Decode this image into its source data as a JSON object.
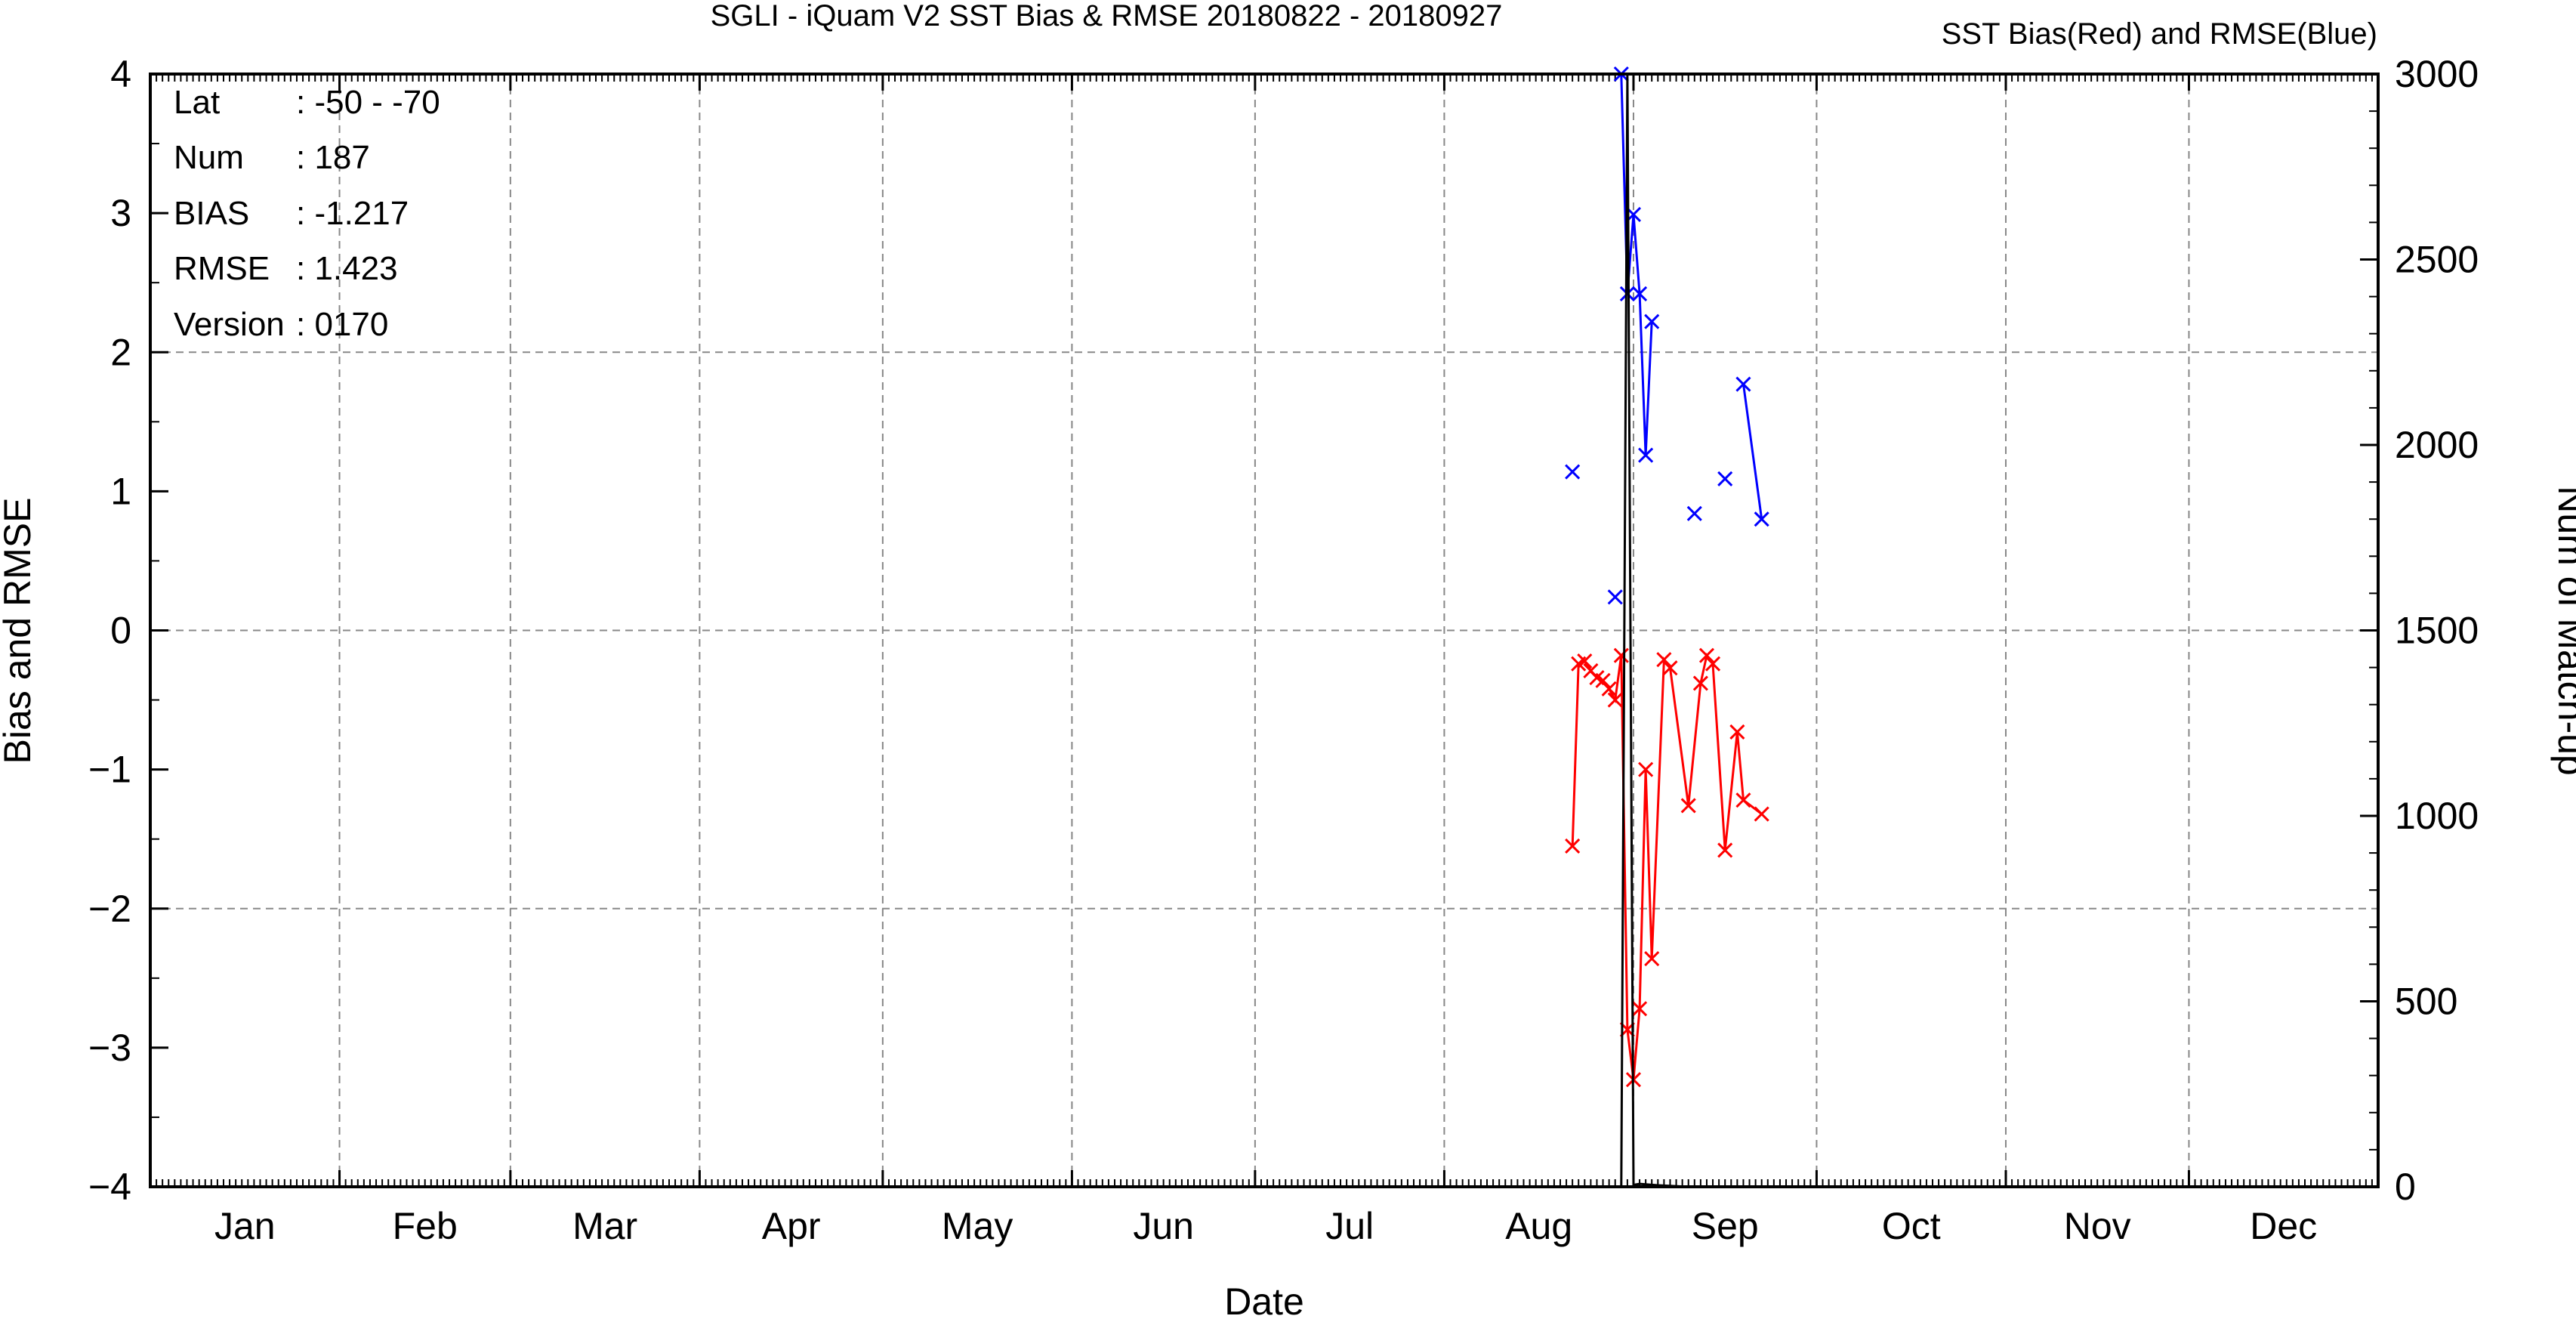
{
  "chart_data": {
    "type": "line",
    "title": "SGLI - iQuam V2 SST Bias & RMSE 20180822 - 20180927",
    "subtitle": "SST Bias(Red) and RMSE(Blue)",
    "xlabel": "Date",
    "ylabel": "Bias and RMSE",
    "y2label": "Num of Match-up",
    "xlim": [
      "2018-01-01",
      "2018-12-31"
    ],
    "ylim": [
      -4,
      4
    ],
    "y2lim": [
      0,
      3000
    ],
    "x_tick_labels": [
      "Jan",
      "Feb",
      "Mar",
      "Apr",
      "May",
      "Jun",
      "Jul",
      "Aug",
      "Sep",
      "Oct",
      "Nov",
      "Dec"
    ],
    "y_ticks": [
      -4,
      -3,
      -2,
      -1,
      0,
      1,
      2,
      3,
      4
    ],
    "y2_ticks": [
      0,
      500,
      1000,
      1500,
      2000,
      2500,
      3000
    ],
    "grid": true,
    "info_box": [
      {
        "label": "Lat",
        "value": ": -50 - -70"
      },
      {
        "label": "Num",
        "value": ": 187"
      },
      {
        "label": "BIAS",
        "value": ": -1.217"
      },
      {
        "label": "RMSE",
        "value": ": 1.423"
      },
      {
        "label": "Version",
        "value": ": 0170"
      }
    ],
    "series": [
      {
        "color": "#ff0000",
        "marker": "x",
        "axis": "left",
        "segments": [
          [
            [
              "2018-08-22",
              -1.55
            ],
            [
              "2018-08-23",
              -0.24
            ],
            [
              "2018-08-24",
              -0.22
            ],
            [
              "2018-08-25",
              -0.29
            ],
            [
              "2018-08-26",
              -0.34
            ],
            [
              "2018-08-27",
              -0.36
            ],
            [
              "2018-08-28",
              -0.42
            ],
            [
              "2018-08-29",
              -0.5
            ],
            [
              "2018-08-30",
              -0.18
            ],
            [
              "2018-08-31",
              -2.87
            ],
            [
              "2018-09-01",
              -3.23
            ],
            [
              "2018-09-02",
              -2.72
            ],
            [
              "2018-09-03",
              -1.0
            ],
            [
              "2018-09-04",
              -2.36
            ],
            [
              "2018-09-06",
              -0.21
            ],
            [
              "2018-09-07",
              -0.27
            ],
            [
              "2018-09-10",
              -1.26
            ],
            [
              "2018-09-12",
              -0.38
            ],
            [
              "2018-09-13",
              -0.18
            ],
            [
              "2018-09-14",
              -0.24
            ],
            [
              "2018-09-16",
              -1.58
            ],
            [
              "2018-09-18",
              -0.73
            ],
            [
              "2018-09-19",
              -1.22
            ],
            [
              "2018-09-22",
              -1.32
            ]
          ]
        ]
      },
      {
        "color": "#0000ff",
        "marker": "x",
        "axis": "left",
        "segments": [
          [
            [
              "2018-08-22",
              1.14
            ]
          ],
          [
            [
              "2018-08-29",
              0.24
            ]
          ],
          [
            [
              "2018-08-30",
              4.0
            ],
            [
              "2018-08-31",
              2.42
            ],
            [
              "2018-09-01",
              2.99
            ],
            [
              "2018-09-02",
              2.42
            ],
            [
              "2018-09-03",
              1.26
            ],
            [
              "2018-09-04",
              2.22
            ]
          ],
          [
            [
              "2018-09-11",
              0.84
            ]
          ],
          [
            [
              "2018-09-16",
              1.09
            ]
          ],
          [
            [
              "2018-09-19",
              1.77
            ],
            [
              "2018-09-22",
              0.8
            ]
          ]
        ]
      },
      {
        "color": "#000000",
        "marker": "line",
        "axis": "right",
        "segments": [
          [
            [
              "2018-08-30",
              0
            ],
            [
              "2018-08-31",
              3000
            ],
            [
              "2018-09-01",
              5
            ],
            [
              "2018-09-02",
              8
            ],
            [
              "2018-09-05",
              4
            ],
            [
              "2018-09-10",
              0
            ]
          ]
        ]
      }
    ]
  }
}
